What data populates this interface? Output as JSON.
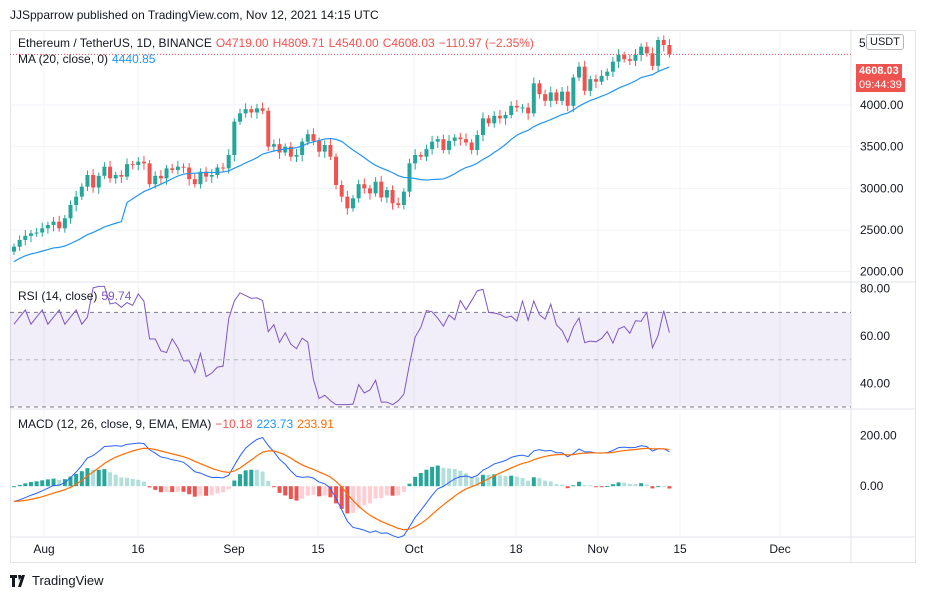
{
  "header": {
    "publisher": "JJSpparrow published on TradingView.com, Nov 12, 2021 14:15 UTC"
  },
  "symbol": {
    "name": "Ethereum / TetherUS, 1D, BINANCE",
    "open": "O4719.00",
    "high": "H4809.71",
    "low": "L4540.00",
    "close": "C4608.03",
    "change": "−110.97 (−2.35%)",
    "currency": "USDT",
    "currency_prefix": "5"
  },
  "ma": {
    "label": "MA (20, close, 0)",
    "value": "4440.85"
  },
  "rsi": {
    "label": "RSI (14, close)",
    "value": "59.74"
  },
  "macd": {
    "label": "MACD (12, 26, close, 9, EMA, EMA)",
    "hist": "−10.18",
    "macd": "223.73",
    "signal": "233.91"
  },
  "price_badge": {
    "price": "4608.03",
    "countdown": "09:44:39"
  },
  "footer": {
    "brand": "TradingView"
  },
  "colors": {
    "up": "#26a69a",
    "down": "#ef5350",
    "ma": "#2196f3",
    "rsi": "#7e57c2",
    "macd": "#2962ff",
    "signal": "#ff6d00"
  },
  "chart_data": {
    "type": "candlestick",
    "x_ticks": [
      "Aug",
      "16",
      "Sep",
      "15",
      "Oct",
      "18",
      "Nov",
      "15",
      "Dec"
    ],
    "price_axis": {
      "ticks": [
        "4000.00",
        "3500.00",
        "3000.00",
        "2500.00",
        "2000.00"
      ],
      "range": [
        1900,
        4900
      ]
    },
    "rsi_axis": {
      "ticks": [
        "80.00",
        "60.00",
        "40.00"
      ],
      "range": [
        30,
        82
      ],
      "band": [
        30,
        70
      ]
    },
    "macd_axis": {
      "ticks": [
        "200.00",
        "0.00"
      ],
      "range": [
        -200,
        300
      ]
    },
    "close": [
      2300,
      2380,
      2430,
      2460,
      2470,
      2520,
      2560,
      2600,
      2520,
      2640,
      2800,
      2900,
      3020,
      3160,
      3010,
      3150,
      3260,
      3120,
      3160,
      3140,
      3290,
      3280,
      3320,
      3300,
      3050,
      3150,
      3120,
      3240,
      3220,
      3260,
      3250,
      3110,
      3050,
      3200,
      3140,
      3160,
      3250,
      3240,
      3400,
      3800,
      3900,
      3950,
      3910,
      3960,
      3930,
      3500,
      3530,
      3430,
      3500,
      3380,
      3400,
      3560,
      3650,
      3570,
      3440,
      3520,
      3380,
      3040,
      2900,
      2760,
      2880,
      3050,
      3000,
      2940,
      3080,
      2890,
      2980,
      2820,
      2800,
      2960,
      3300,
      3400,
      3380,
      3470,
      3560,
      3590,
      3460,
      3570,
      3610,
      3590,
      3550,
      3460,
      3640,
      3840,
      3780,
      3870,
      3840,
      3880,
      3990,
      3970,
      3970,
      3900,
      4260,
      4130,
      4050,
      4150,
      4050,
      4160,
      3990,
      4330,
      4460,
      4170,
      4310,
      4280,
      4350,
      4400,
      4520,
      4600,
      4550,
      4530,
      4600,
      4700,
      4620,
      4470,
      4780,
      4720,
      4608
    ]
  }
}
